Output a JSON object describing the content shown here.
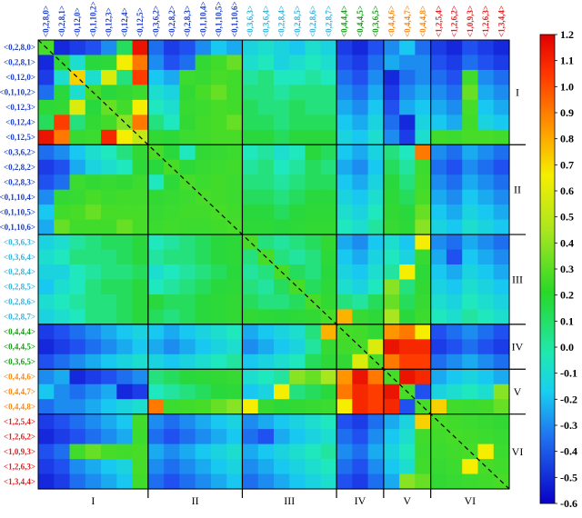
{
  "chart_data": {
    "type": "heatmap",
    "title": "",
    "xlabel": "",
    "ylabel": "",
    "labels": [
      "<0,2,8,0>",
      "<0,2,8,1>",
      "<0,12,0>",
      "<0,1,10,2>",
      "<0,12,3>",
      "<0,12,4>",
      "<0,12,5>",
      "<0,3,6,2>",
      "<0,2,8,2>",
      "<0,2,8,3>",
      "<0,1,10,4>",
      "<0,1,10,5>",
      "<0,1,10,6>",
      "<0,3,6,3>",
      "<0,3,6,4>",
      "<0,2,8,4>",
      "<0,2,8,5>",
      "<0,2,8,6>",
      "<0,2,8,7>",
      "<0,4,4,4>",
      "<0,4,4,5>",
      "<0,3,6,5>",
      "<0,4,4,6>",
      "<0,4,4,7>",
      "<0,4,4,8>",
      "<1,2,5,4>",
      "<1,2,6,2>",
      "<1,0,9,3>",
      "<1,2,6,3>",
      "<1,3,4,4>"
    ],
    "label_groups": [
      0,
      0,
      0,
      0,
      0,
      0,
      0,
      1,
      1,
      1,
      1,
      1,
      1,
      2,
      2,
      2,
      2,
      2,
      2,
      3,
      3,
      3,
      4,
      4,
      4,
      5,
      5,
      5,
      5,
      5
    ],
    "group_colors": [
      "#1f3fbf",
      "#1f3fbf",
      "#3bb0d8",
      "#1a9a1a",
      "#f08a1c",
      "#e02020"
    ],
    "groups": [
      "I",
      "II",
      "III",
      "IV",
      "V",
      "VI"
    ],
    "colorbar": {
      "min": -0.6,
      "max": 1.2,
      "ticks": [
        "1.2",
        "1.1",
        "1.0",
        "0.9",
        "0.8",
        "0.7",
        "0.6",
        "0.5",
        "0.4",
        "0.3",
        "0.2",
        "0.1",
        "0.0",
        "-0.1",
        "-0.2",
        "-0.3",
        "-0.4",
        "-0.5",
        "-0.6"
      ]
    },
    "matrix": [
      [
        0.45,
        -0.5,
        -0.45,
        -0.4,
        -0.3,
        0.1,
        1.15,
        -0.35,
        -0.45,
        -0.4,
        -0.3,
        -0.2,
        -0.25,
        -0.15,
        -0.1,
        -0.15,
        -0.2,
        -0.1,
        -0.15,
        -0.45,
        -0.5,
        -0.4,
        -0.3,
        -0.2,
        -0.35,
        -0.45,
        -0.5,
        -0.4,
        -0.45,
        -0.5
      ],
      [
        -0.5,
        0.2,
        -0.1,
        0.15,
        0.2,
        0.75,
        0.95,
        -0.3,
        -0.4,
        -0.35,
        0.25,
        0.4,
        0.5,
        -0.1,
        -0.05,
        -0.15,
        -0.1,
        -0.05,
        -0.1,
        -0.4,
        -0.45,
        -0.35,
        -0.25,
        -0.3,
        -0.3,
        -0.4,
        -0.45,
        -0.35,
        -0.4,
        -0.45
      ],
      [
        -0.45,
        -0.1,
        0.8,
        -0.1,
        0.7,
        0.05,
        1.05,
        -0.2,
        -0.25,
        0.35,
        0.3,
        0.45,
        0.4,
        0.0,
        0.05,
        -0.05,
        -0.05,
        0.0,
        -0.05,
        -0.35,
        -0.4,
        -0.3,
        -0.5,
        -0.35,
        -0.3,
        -0.35,
        -0.4,
        0.4,
        -0.3,
        -0.35
      ],
      [
        -0.35,
        0.15,
        -0.1,
        0.45,
        0.15,
        0.25,
        0.35,
        -0.1,
        -0.15,
        0.25,
        0.45,
        0.5,
        0.4,
        0.05,
        0.05,
        0.0,
        0.05,
        0.05,
        0.05,
        -0.3,
        -0.35,
        -0.25,
        -0.45,
        -0.3,
        -0.25,
        -0.3,
        -0.35,
        0.5,
        -0.25,
        -0.3
      ],
      [
        0.2,
        0.25,
        0.7,
        0.15,
        0.5,
        0.4,
        0.75,
        -0.05,
        -0.1,
        0.3,
        0.35,
        0.45,
        0.4,
        0.1,
        0.05,
        0.05,
        0.1,
        0.05,
        0.05,
        -0.25,
        -0.3,
        -0.2,
        -0.4,
        -0.25,
        -0.2,
        -0.25,
        -0.3,
        0.45,
        -0.2,
        -0.25
      ],
      [
        0.1,
        1.05,
        0.05,
        0.25,
        0.4,
        0.55,
        0.95,
        0.05,
        -0.05,
        0.25,
        0.4,
        0.45,
        0.5,
        0.1,
        0.1,
        0.05,
        0.1,
        0.1,
        0.1,
        -0.2,
        -0.25,
        -0.15,
        -0.35,
        -0.5,
        -0.15,
        -0.2,
        -0.25,
        0.4,
        -0.15,
        -0.2
      ],
      [
        1.15,
        0.95,
        0.3,
        0.35,
        1.1,
        0.75,
        0.65,
        0.25,
        0.2,
        0.35,
        0.4,
        0.45,
        0.45,
        0.15,
        0.15,
        0.1,
        0.15,
        0.15,
        0.15,
        -0.15,
        -0.2,
        -0.1,
        -0.3,
        -0.45,
        -0.1,
        0.4,
        0.35,
        0.45,
        0.45,
        0.4
      ],
      [
        -0.35,
        -0.3,
        -0.2,
        -0.1,
        -0.05,
        0.05,
        0.25,
        0.45,
        0.15,
        -0.05,
        0.25,
        0.3,
        0.35,
        -0.05,
        0.0,
        -0.1,
        -0.05,
        0.15,
        0.1,
        -0.2,
        -0.25,
        -0.15,
        0.05,
        -0.05,
        0.95,
        -0.3,
        -0.35,
        -0.25,
        -0.3,
        -0.35
      ],
      [
        -0.45,
        -0.4,
        -0.25,
        -0.15,
        -0.1,
        -0.05,
        0.2,
        0.15,
        0.45,
        0.2,
        0.3,
        0.35,
        0.4,
        0.0,
        0.05,
        -0.05,
        0.0,
        0.1,
        0.05,
        -0.25,
        -0.3,
        -0.2,
        0.1,
        0.0,
        0.35,
        -0.35,
        -0.4,
        -0.3,
        -0.35,
        -0.4
      ],
      [
        -0.4,
        -0.35,
        0.35,
        0.25,
        0.3,
        0.25,
        0.35,
        -0.05,
        0.2,
        0.45,
        0.35,
        0.4,
        0.35,
        0.05,
        0.05,
        0.0,
        0.05,
        0.1,
        0.1,
        -0.2,
        -0.25,
        -0.15,
        0.15,
        0.05,
        0.4,
        -0.3,
        -0.35,
        -0.25,
        -0.3,
        -0.35
      ],
      [
        -0.3,
        0.25,
        0.3,
        0.45,
        0.35,
        0.4,
        0.4,
        0.25,
        0.3,
        0.35,
        0.45,
        0.4,
        0.35,
        0.1,
        0.1,
        0.05,
        0.1,
        0.15,
        0.15,
        -0.15,
        -0.2,
        -0.1,
        0.2,
        0.1,
        0.45,
        -0.25,
        -0.3,
        -0.2,
        -0.25,
        -0.3
      ],
      [
        -0.2,
        0.4,
        0.45,
        0.5,
        0.45,
        0.45,
        0.45,
        0.3,
        0.35,
        0.4,
        0.4,
        0.45,
        0.4,
        0.15,
        0.15,
        0.1,
        0.15,
        0.2,
        0.2,
        -0.1,
        -0.15,
        -0.05,
        0.25,
        0.15,
        0.5,
        -0.2,
        -0.25,
        -0.15,
        -0.2,
        -0.25
      ],
      [
        -0.25,
        0.5,
        0.4,
        0.4,
        0.4,
        0.5,
        0.45,
        0.35,
        0.4,
        0.35,
        0.35,
        0.4,
        0.45,
        0.2,
        0.2,
        0.15,
        0.2,
        0.25,
        0.25,
        -0.05,
        -0.1,
        0.0,
        0.3,
        0.2,
        0.55,
        -0.15,
        -0.2,
        -0.1,
        -0.15,
        -0.2
      ],
      [
        -0.15,
        -0.1,
        0.0,
        0.05,
        0.1,
        0.1,
        0.15,
        -0.05,
        0.0,
        0.05,
        0.1,
        0.15,
        0.2,
        0.45,
        0.05,
        0.0,
        0.05,
        0.1,
        0.25,
        -0.25,
        -0.3,
        -0.2,
        -0.1,
        -0.2,
        0.75,
        -0.3,
        -0.35,
        -0.25,
        -0.3,
        -0.35
      ],
      [
        -0.1,
        -0.05,
        0.05,
        0.05,
        0.05,
        0.1,
        0.15,
        0.0,
        0.05,
        0.05,
        0.1,
        0.15,
        0.2,
        0.05,
        0.45,
        0.05,
        0.0,
        0.05,
        0.2,
        -0.2,
        -0.25,
        -0.15,
        -0.05,
        -0.15,
        0.3,
        -0.25,
        -0.4,
        -0.2,
        -0.25,
        -0.3
      ],
      [
        -0.15,
        -0.15,
        -0.05,
        0.0,
        0.05,
        0.05,
        0.1,
        -0.1,
        -0.05,
        0.0,
        0.05,
        0.1,
        0.15,
        0.0,
        0.05,
        0.45,
        0.1,
        0.05,
        0.15,
        -0.15,
        -0.2,
        -0.1,
        0.0,
        0.75,
        0.2,
        -0.2,
        -0.25,
        -0.15,
        -0.2,
        -0.25
      ],
      [
        -0.2,
        -0.1,
        -0.05,
        0.05,
        0.1,
        0.1,
        0.15,
        -0.05,
        0.0,
        0.05,
        0.1,
        0.15,
        0.2,
        0.05,
        0.0,
        0.1,
        0.45,
        0.1,
        0.2,
        -0.1,
        -0.15,
        -0.05,
        0.55,
        0.05,
        0.25,
        -0.15,
        -0.2,
        -0.1,
        -0.15,
        -0.2
      ],
      [
        -0.1,
        -0.05,
        0.0,
        0.05,
        0.05,
        0.1,
        0.15,
        0.15,
        0.1,
        0.1,
        0.15,
        0.2,
        0.25,
        0.1,
        0.05,
        0.05,
        0.1,
        0.45,
        0.25,
        0.05,
        0.0,
        0.1,
        0.5,
        0.1,
        0.3,
        -0.1,
        -0.15,
        -0.05,
        -0.1,
        -0.15
      ],
      [
        -0.15,
        -0.1,
        -0.05,
        0.05,
        0.05,
        0.1,
        0.15,
        0.1,
        0.05,
        0.1,
        0.15,
        0.2,
        0.25,
        0.25,
        0.2,
        0.15,
        0.2,
        0.25,
        0.45,
        0.85,
        0.3,
        0.2,
        0.6,
        0.15,
        0.35,
        -0.05,
        -0.1,
        0.0,
        -0.05,
        -0.1
      ],
      [
        -0.45,
        -0.4,
        -0.35,
        -0.3,
        -0.25,
        -0.2,
        -0.15,
        -0.2,
        -0.25,
        -0.2,
        -0.15,
        -0.1,
        -0.05,
        -0.25,
        -0.2,
        -0.15,
        -0.1,
        0.05,
        0.85,
        0.45,
        0.4,
        0.25,
        0.9,
        0.95,
        0.75,
        -0.4,
        -0.35,
        -0.3,
        -0.35,
        -0.4
      ],
      [
        -0.5,
        -0.45,
        -0.4,
        -0.35,
        -0.3,
        -0.25,
        -0.2,
        -0.25,
        -0.3,
        -0.25,
        -0.2,
        -0.15,
        -0.1,
        -0.3,
        -0.25,
        -0.2,
        -0.15,
        0.0,
        0.3,
        0.4,
        0.45,
        0.7,
        1.15,
        1.1,
        1.1,
        -0.45,
        -0.4,
        -0.35,
        -0.4,
        -0.45
      ],
      [
        -0.4,
        -0.35,
        -0.3,
        -0.25,
        -0.2,
        -0.15,
        -0.1,
        -0.15,
        -0.2,
        -0.15,
        -0.1,
        -0.05,
        0.0,
        -0.2,
        -0.15,
        -0.1,
        -0.05,
        0.1,
        0.2,
        0.25,
        0.7,
        0.45,
        0.95,
        1.05,
        1.05,
        -0.35,
        -0.3,
        -0.25,
        -0.3,
        -0.35
      ],
      [
        -0.3,
        -0.25,
        -0.5,
        -0.45,
        -0.4,
        -0.35,
        -0.3,
        0.05,
        0.1,
        0.15,
        0.2,
        0.25,
        0.3,
        -0.1,
        -0.05,
        0.0,
        0.55,
        0.5,
        0.6,
        0.9,
        1.15,
        0.95,
        0.45,
        1.15,
        1.1,
        -0.25,
        -0.2,
        -0.15,
        -0.2,
        -0.25
      ],
      [
        -0.2,
        -0.3,
        -0.35,
        -0.3,
        -0.25,
        -0.5,
        -0.45,
        -0.05,
        0.0,
        0.05,
        0.1,
        0.15,
        0.2,
        -0.2,
        -0.15,
        0.75,
        0.05,
        0.1,
        0.15,
        0.95,
        1.1,
        1.05,
        1.15,
        0.45,
        -0.4,
        -0.15,
        -0.1,
        -0.05,
        -0.1,
        0.55
      ],
      [
        -0.35,
        -0.3,
        -0.3,
        -0.25,
        -0.2,
        -0.15,
        -0.1,
        0.95,
        0.35,
        0.4,
        0.45,
        0.5,
        0.55,
        0.75,
        0.3,
        0.2,
        0.25,
        0.3,
        0.35,
        0.75,
        1.1,
        1.05,
        1.1,
        -0.4,
        0.45,
        0.8,
        0.4,
        0.35,
        0.4,
        0.5
      ],
      [
        -0.45,
        -0.4,
        -0.35,
        -0.3,
        -0.25,
        -0.2,
        0.4,
        -0.3,
        -0.35,
        -0.3,
        -0.25,
        -0.2,
        -0.15,
        -0.3,
        -0.25,
        -0.2,
        -0.15,
        -0.1,
        -0.05,
        -0.4,
        -0.45,
        -0.35,
        -0.25,
        -0.15,
        0.8,
        0.45,
        0.4,
        0.35,
        0.3,
        0.25
      ],
      [
        -0.5,
        -0.45,
        -0.4,
        -0.35,
        -0.3,
        -0.25,
        0.35,
        -0.35,
        -0.4,
        -0.35,
        -0.3,
        -0.25,
        -0.2,
        -0.35,
        -0.4,
        -0.25,
        -0.2,
        -0.15,
        -0.1,
        -0.35,
        -0.4,
        -0.3,
        -0.2,
        -0.1,
        0.4,
        0.4,
        0.45,
        0.4,
        0.35,
        0.3
      ],
      [
        -0.4,
        -0.35,
        0.4,
        0.5,
        0.45,
        0.4,
        0.45,
        -0.25,
        -0.3,
        -0.25,
        -0.2,
        -0.15,
        -0.1,
        -0.25,
        -0.2,
        -0.15,
        -0.1,
        -0.05,
        0.0,
        -0.3,
        -0.35,
        -0.25,
        -0.15,
        -0.05,
        0.35,
        0.35,
        0.4,
        0.45,
        0.75,
        0.35
      ],
      [
        -0.45,
        -0.4,
        -0.3,
        -0.25,
        -0.2,
        -0.15,
        0.45,
        -0.3,
        -0.35,
        -0.3,
        -0.25,
        -0.2,
        -0.15,
        -0.3,
        -0.25,
        -0.2,
        -0.15,
        -0.1,
        -0.05,
        -0.35,
        -0.4,
        -0.3,
        -0.2,
        -0.1,
        0.4,
        0.3,
        0.35,
        0.75,
        0.45,
        0.4
      ],
      [
        -0.5,
        -0.45,
        -0.35,
        -0.3,
        -0.25,
        -0.2,
        0.4,
        -0.35,
        -0.4,
        -0.35,
        -0.3,
        -0.25,
        -0.2,
        -0.35,
        -0.3,
        -0.25,
        -0.2,
        -0.15,
        -0.1,
        -0.4,
        -0.45,
        -0.35,
        -0.25,
        0.55,
        0.5,
        0.25,
        0.3,
        0.35,
        0.4,
        0.45
      ]
    ]
  }
}
